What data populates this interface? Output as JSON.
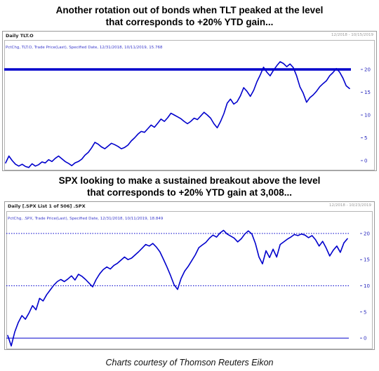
{
  "headings": {
    "tlt": [
      "Another rotation out of bonds when TLT peaked at the level",
      "that corresponds to +20% YTD gain..."
    ],
    "spx": [
      "SPX looking to make a sustained breakout above the level",
      "that corresponds to +20% YTD gain at 3,008..."
    ]
  },
  "caption": "Charts courtesy of Thomson Reuters Eikon",
  "panels": {
    "tlt": {
      "title": "Daily TLT.O",
      "date_range": "12/2018 - 10/15/2019",
      "legend": "PctChg, TLT.O, Trade Price(Last), Specified Date, 12/31/2018, 10/11/2019, 15.768"
    },
    "spx": {
      "title": "Daily [.SPX List 1 of 506] .SPX",
      "date_range": "12/2018 - 10/23/2019",
      "legend": "PctChg, .SPX, Trade Price(Last), Specified Date, 12/31/2018, 10/11/2019, 18.849"
    }
  },
  "colors": {
    "line": "#0000cc",
    "reference": "#0000cc",
    "tick_text": "#2222bb",
    "grid": "#b5b5b5"
  },
  "chart_data": [
    {
      "type": "line",
      "ylim": [
        -2,
        24
      ],
      "yticks": [
        0,
        5,
        10,
        15,
        20
      ],
      "hline": {
        "value": 20,
        "style": "thick"
      },
      "grid": false,
      "series": [
        {
          "values": [
            -0.5,
            1.0,
            0.0,
            -0.8,
            -1.2,
            -0.8,
            -1.3,
            -1.5,
            -0.7,
            -1.2,
            -0.9,
            -0.3,
            -0.5,
            0.2,
            -0.2,
            0.5,
            1.0,
            0.4,
            -0.2,
            -0.6,
            -1.1,
            -0.5,
            -0.2,
            0.3,
            1.2,
            1.8,
            2.8,
            4.0,
            3.6,
            3.0,
            2.6,
            3.2,
            3.8,
            3.5,
            3.1,
            2.6,
            2.9,
            3.4,
            4.3,
            5.0,
            5.8,
            6.4,
            6.2,
            7.0,
            7.8,
            7.3,
            8.2,
            9.1,
            8.6,
            9.4,
            10.4,
            10.0,
            9.6,
            9.2,
            8.6,
            8.1,
            8.6,
            9.3,
            9.0,
            9.8,
            10.6,
            10.0,
            9.3,
            8.1,
            7.2,
            8.6,
            10.3,
            12.6,
            13.5,
            12.4,
            12.9,
            14.2,
            16.0,
            15.2,
            14.1,
            15.4,
            17.3,
            18.8,
            20.5,
            19.4,
            18.6,
            19.8,
            20.8,
            21.7,
            21.3,
            20.6,
            21.2,
            20.4,
            18.6,
            16.2,
            14.8,
            12.8,
            13.8,
            14.4,
            15.2,
            16.2,
            16.9,
            17.5,
            18.6,
            19.3,
            20.2,
            19.4,
            18.1,
            16.4,
            15.8
          ]
        }
      ]
    },
    {
      "type": "line",
      "ylim": [
        -2,
        22
      ],
      "yticks": [
        0,
        5,
        10,
        15,
        20
      ],
      "hline": {
        "value": 20,
        "style": "dotted"
      },
      "reference_lines": [
        0,
        10,
        20
      ],
      "grid": false,
      "series": [
        {
          "values": [
            0.5,
            -1.5,
            1.2,
            3.0,
            4.3,
            3.6,
            4.8,
            6.2,
            5.4,
            7.6,
            7.1,
            8.3,
            9.2,
            10.1,
            10.8,
            11.2,
            10.8,
            11.3,
            11.9,
            11.1,
            12.2,
            11.8,
            11.2,
            10.5,
            9.8,
            11.2,
            12.3,
            13.1,
            13.6,
            13.2,
            13.9,
            14.3,
            14.9,
            15.5,
            15.0,
            15.3,
            15.9,
            16.5,
            17.2,
            17.9,
            17.6,
            18.1,
            17.4,
            16.5,
            15.1,
            13.6,
            12.0,
            10.2,
            9.3,
            11.4,
            12.8,
            13.7,
            14.8,
            15.9,
            17.3,
            17.8,
            18.3,
            19.1,
            19.7,
            19.3,
            20.1,
            20.6,
            19.9,
            19.5,
            19.1,
            18.4,
            19.0,
            19.9,
            20.5,
            19.9,
            18.1,
            15.5,
            14.2,
            16.7,
            15.4,
            17.0,
            15.5,
            17.9,
            18.4,
            18.9,
            19.3,
            19.8,
            19.6,
            19.9,
            19.7,
            19.2,
            19.6,
            18.8,
            17.6,
            18.5,
            17.2,
            15.7,
            16.8,
            17.6,
            16.4,
            18.2,
            19.0
          ]
        }
      ]
    }
  ]
}
